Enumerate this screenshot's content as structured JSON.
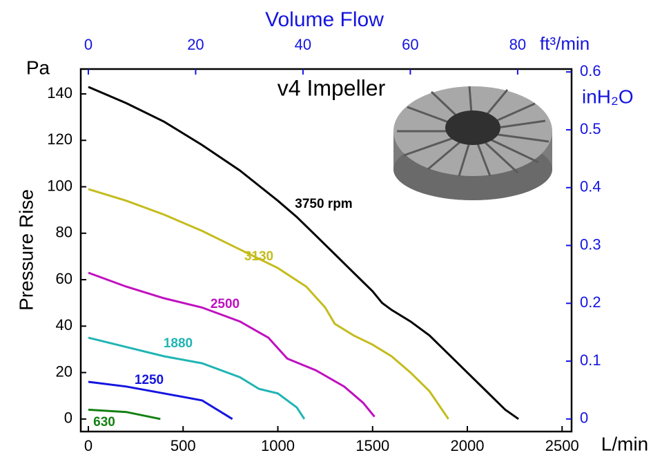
{
  "chart_data": {
    "type": "line",
    "title": "v4 Impeller",
    "x_label": "L/min",
    "y_label": "Pressure Rise",
    "y_unit": "Pa",
    "x2_title": "Volume Flow",
    "x2_label": "ft³/min",
    "y2_label": "inH₂O",
    "xlim": [
      -40,
      2550
    ],
    "xticks": [
      0,
      500,
      1000,
      1500,
      2000,
      2500
    ],
    "ylim": [
      -5.4,
      150.7
    ],
    "yticks": [
      0,
      20,
      40,
      60,
      80,
      100,
      120,
      140
    ],
    "x2lim": [
      -1.41,
      90.05
    ],
    "x2ticks": [
      0,
      20,
      40,
      60,
      80
    ],
    "y2lim": [
      -0.0217,
      0.605
    ],
    "y2ticks": [
      0,
      0.1,
      0.2,
      0.3,
      0.4,
      0.5,
      0.6
    ],
    "series": [
      {
        "name": "3750 rpm",
        "color": "#000000",
        "x": [
          0,
          200,
          400,
          600,
          800,
          1000,
          1100,
          1200,
          1300,
          1400,
          1500,
          1550,
          1600,
          1700,
          1800,
          1900,
          2000,
          2100,
          2200,
          2270
        ],
        "values": [
          143,
          136,
          128,
          118,
          107,
          94,
          87,
          79,
          71,
          63,
          55,
          50,
          47,
          42,
          36,
          28,
          20,
          12,
          4,
          0
        ]
      },
      {
        "name": "3130",
        "color": "#c4bc1c",
        "x": [
          0,
          200,
          400,
          600,
          800,
          1000,
          1150,
          1250,
          1300,
          1400,
          1500,
          1600,
          1700,
          1800,
          1900
        ],
        "values": [
          99,
          94,
          88,
          81,
          73,
          65,
          57,
          48,
          41,
          36,
          32,
          27,
          20,
          12,
          0
        ]
      },
      {
        "name": "2500",
        "color": "#c010c0",
        "x": [
          0,
          200,
          400,
          600,
          800,
          950,
          1050,
          1200,
          1350,
          1450,
          1510
        ],
        "values": [
          63,
          57,
          52,
          48,
          42,
          35,
          26,
          21,
          14,
          7,
          1
        ]
      },
      {
        "name": "1880",
        "color": "#20b4b4",
        "x": [
          0,
          200,
          400,
          600,
          800,
          900,
          1000,
          1100,
          1140
        ],
        "values": [
          35,
          31,
          27,
          24,
          18,
          13,
          11,
          5,
          0
        ]
      },
      {
        "name": "1250",
        "color": "#1414e0",
        "x": [
          0,
          200,
          400,
          600,
          760
        ],
        "values": [
          16,
          14,
          11,
          8,
          0
        ]
      },
      {
        "name": "630",
        "color": "#138013",
        "x": [
          0,
          200,
          380
        ],
        "values": [
          4,
          3,
          0
        ]
      }
    ]
  }
}
